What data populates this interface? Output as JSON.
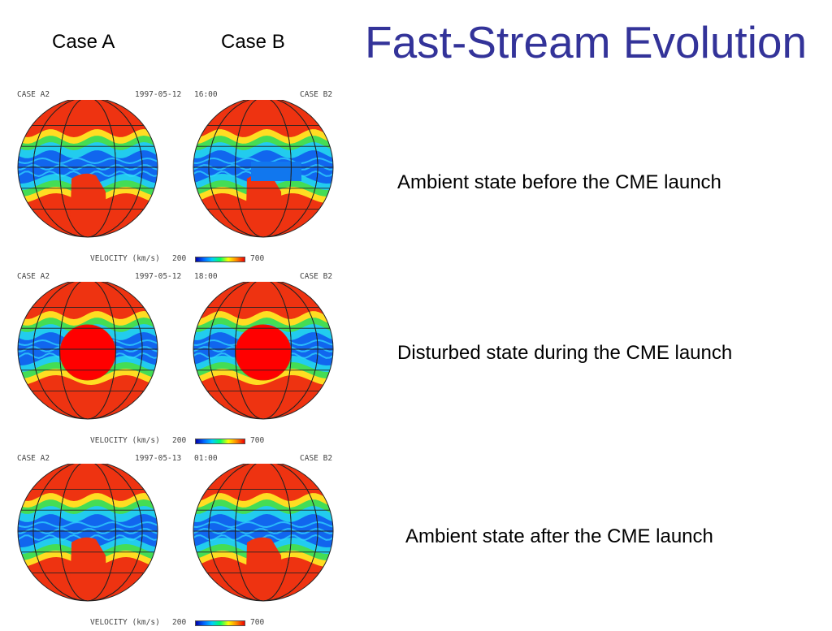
{
  "title": "Fast-Stream Evolution",
  "headers": {
    "case_a": "Case A",
    "case_b": "Case B"
  },
  "panels": [
    {
      "case_a_label": "CASE A2",
      "date": "1997-05-12",
      "time": "16:00",
      "case_b_label": "CASE B2",
      "variant": "before",
      "colorbar": {
        "label": "VELOCITY (km/s)",
        "min": "200",
        "max": "700"
      },
      "description": "Ambient state before the CME launch"
    },
    {
      "case_a_label": "CASE A2",
      "date": "1997-05-12",
      "time": "18:00",
      "case_b_label": "CASE B2",
      "variant": "during",
      "colorbar": {
        "label": "VELOCITY (km/s)",
        "min": "200",
        "max": "700"
      },
      "description": "Disturbed state during the CME launch"
    },
    {
      "case_a_label": "CASE A2",
      "date": "1997-05-13",
      "time": "01:00",
      "case_b_label": "CASE B2",
      "variant": "after",
      "colorbar": {
        "label": "VELOCITY (km/s)",
        "min": "200",
        "max": "700"
      },
      "description": "Ambient state after the CME launch"
    }
  ],
  "colors": {
    "title": "#333399",
    "fast_wind": "#ee3311",
    "slow_wind": "#1166ee",
    "cme": "#ff0000"
  }
}
